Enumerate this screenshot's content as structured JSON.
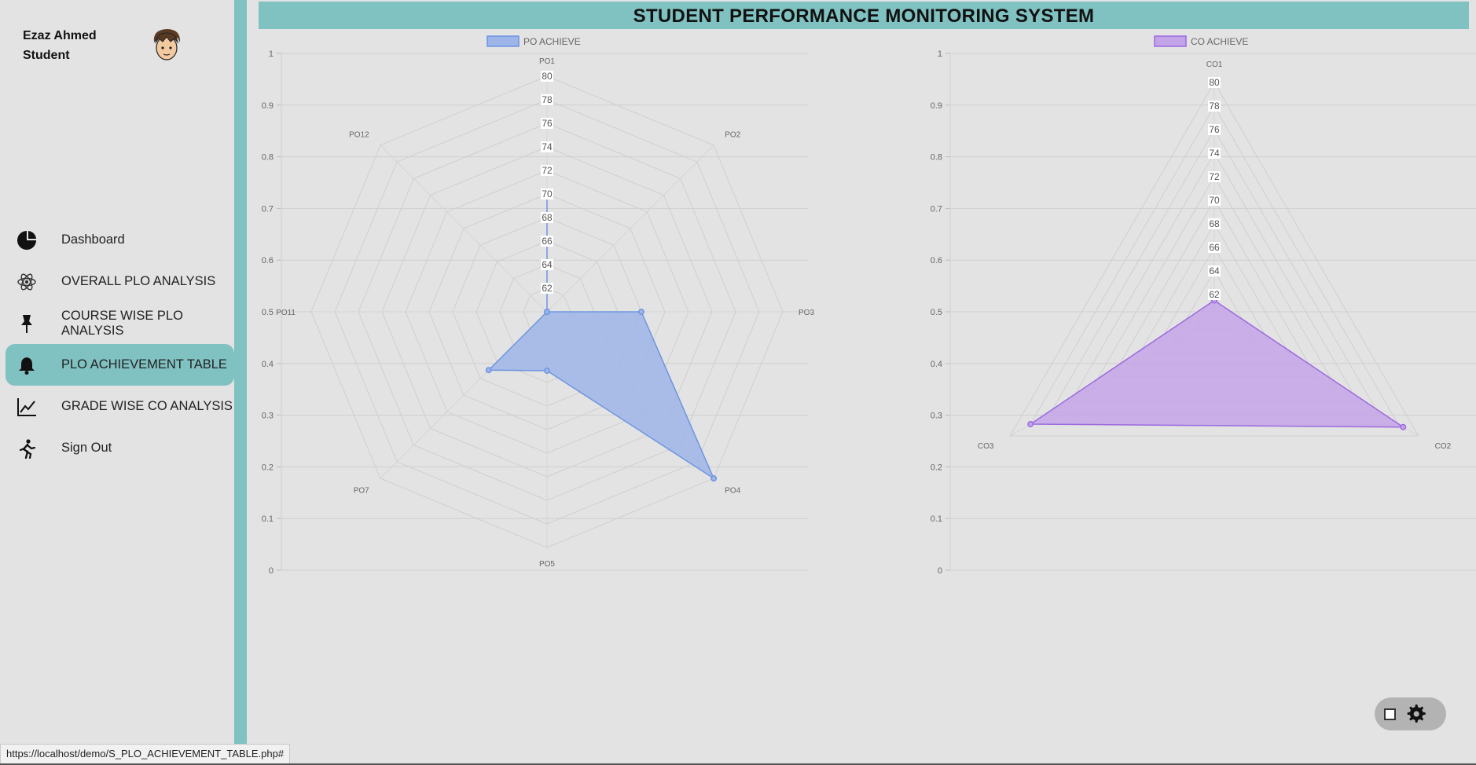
{
  "user": {
    "name": "Ezaz Ahmed",
    "role": "Student"
  },
  "nav": [
    {
      "label": "Dashboard",
      "icon": "pie-chart-icon"
    },
    {
      "label": "OVERALL PLO ANALYSIS",
      "icon": "atom-icon"
    },
    {
      "label": "COURSE WISE PLO ANALYSIS",
      "icon": "pin-icon"
    },
    {
      "label": "PLO ACHIEVEMENT TABLE",
      "icon": "bell-icon",
      "active": true
    },
    {
      "label": "GRADE WISE CO ANALYSIS",
      "icon": "line-chart-icon"
    },
    {
      "label": "Sign Out",
      "icon": "running-person-icon"
    }
  ],
  "header": {
    "title": "STUDENT PERFORMANCE MONITORING SYSTEM"
  },
  "status_url": "https://localhost/demo/S_PLO_ACHIEVEMENT_TABLE.php#",
  "colors": {
    "accent": "#80c1c1",
    "po_fill": "#9db5e8",
    "po_stroke": "#6d95e0",
    "co_fill": "#c4a4e8",
    "co_stroke": "#9b6ae0"
  },
  "chart_data": [
    {
      "type": "radar",
      "legend": "PO ACHIEVE",
      "categories": [
        "PO1",
        "PO2",
        "PO3",
        "PO4",
        "PO5",
        "PO7",
        "PO11",
        "PO12"
      ],
      "values": [
        70,
        60,
        68,
        80,
        65,
        67,
        60,
        60
      ],
      "r_range": [
        60,
        80
      ],
      "r_ticks": [
        62,
        64,
        66,
        68,
        70,
        72,
        74,
        76,
        78,
        80
      ],
      "y_axis_range": [
        0,
        1
      ],
      "y_ticks": [
        "0",
        "0.1",
        "0.2",
        "0.3",
        "0.4",
        "0.5",
        "0.6",
        "0.7",
        "0.8",
        "0.9",
        "1"
      ]
    },
    {
      "type": "radar",
      "legend": "CO ACHIEVE",
      "categories": [
        "CO1",
        "CO2",
        "CO3"
      ],
      "values": [
        61.5,
        78.5,
        78
      ],
      "r_range": [
        60,
        80
      ],
      "r_ticks": [
        62,
        64,
        66,
        68,
        70,
        72,
        74,
        76,
        78,
        80
      ],
      "y_axis_range": [
        0,
        1
      ],
      "y_ticks": [
        "0",
        "0.1",
        "0.2",
        "0.3",
        "0.4",
        "0.5",
        "0.6",
        "0.7",
        "0.8",
        "0.9",
        "1"
      ]
    }
  ]
}
